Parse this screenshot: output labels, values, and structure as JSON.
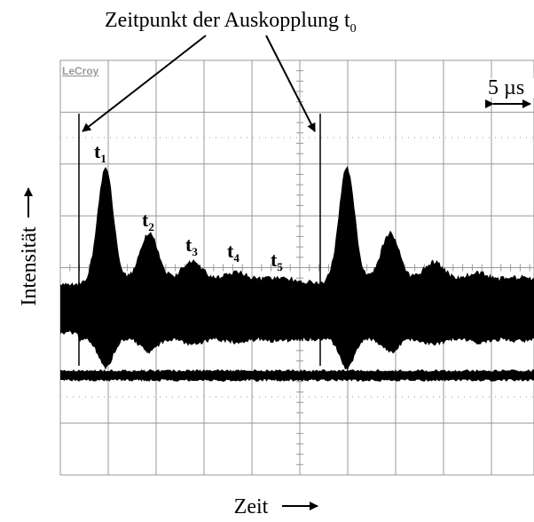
{
  "title": {
    "text": "Zeitpunkt der Auskopplung t",
    "subscript": "0"
  },
  "brand": "LeCroy",
  "scale": "5 µs",
  "markers": [
    {
      "text": "t",
      "subscript": "1"
    },
    {
      "text": "t",
      "subscript": "2"
    },
    {
      "text": "t",
      "subscript": "3"
    },
    {
      "text": "t",
      "subscript": "4"
    },
    {
      "text": "t",
      "subscript": "5"
    }
  ],
  "y_label": "Intensität",
  "x_label": "Zeit"
}
